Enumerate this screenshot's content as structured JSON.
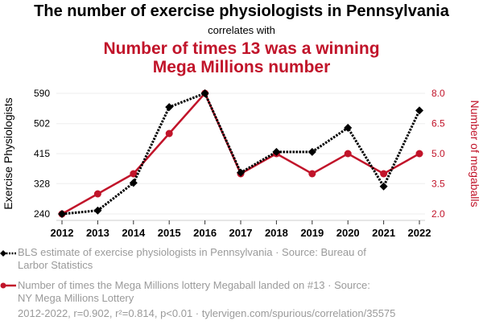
{
  "header": {
    "title": "The number of exercise physiologists in Pennsylvania",
    "subtitle": "correlates with",
    "title2_line1": "Number of times 13 was a winning",
    "title2_line2": "Mega Millions number"
  },
  "colors": {
    "series1": "#000000",
    "series2": "#c1142a",
    "grid": "#eeeeee",
    "muted_text": "#9a9a9a"
  },
  "chart_data": {
    "type": "line",
    "x": [
      2012,
      2013,
      2014,
      2015,
      2016,
      2017,
      2018,
      2019,
      2020,
      2021,
      2022
    ],
    "series": [
      {
        "name": "BLS estimate of exercise physiologists in Pennsylvania",
        "axis": "left",
        "style": "dotted-diamond",
        "values": [
          240,
          250,
          330,
          550,
          590,
          360,
          420,
          420,
          490,
          320,
          540
        ]
      },
      {
        "name": "Number of times the Mega Millions lottery Megaball landed on #13",
        "axis": "right",
        "style": "solid-circle",
        "values": [
          2,
          3,
          4,
          6,
          8,
          4,
          5,
          4,
          5,
          4,
          5
        ]
      }
    ],
    "ylabel_left": "Exercise Physiologists",
    "ylabel_right": "Number of megaballs",
    "yticks_left": [
      "240",
      "328",
      "415",
      "502",
      "590"
    ],
    "ylim_left": [
      240,
      590
    ],
    "yticks_right": [
      "2.0",
      "3.5",
      "5.0",
      "6.5",
      "8.0"
    ],
    "ylim_right": [
      2,
      8
    ],
    "xticks": [
      "2012",
      "2013",
      "2014",
      "2015",
      "2016",
      "2017",
      "2018",
      "2019",
      "2020",
      "2021",
      "2022"
    ],
    "grid": true
  },
  "legend": {
    "item1_line1": "BLS estimate of exercise physiologists in Pennsylvania · Source: Bureau of",
    "item1_line2": "Larbor Statistics",
    "item2_line1": "Number of times the Mega Millions lottery Megaball landed on #13 · Source:",
    "item2_line2": "NY Mega Millions Lottery"
  },
  "footer": {
    "text": "2012-2022, r=0.902, r²=0.814, p<0.01 · tylervigen.com/spurious/correlation/35575"
  }
}
